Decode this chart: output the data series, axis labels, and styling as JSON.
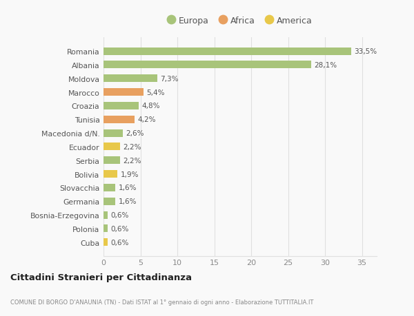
{
  "categories": [
    "Cuba",
    "Polonia",
    "Bosnia-Erzegovina",
    "Germania",
    "Slovacchia",
    "Bolivia",
    "Serbia",
    "Ecuador",
    "Macedonia d/N.",
    "Tunisia",
    "Croazia",
    "Marocco",
    "Moldova",
    "Albania",
    "Romania"
  ],
  "values": [
    0.6,
    0.6,
    0.6,
    1.6,
    1.6,
    1.9,
    2.2,
    2.2,
    2.6,
    4.2,
    4.8,
    5.4,
    7.3,
    28.1,
    33.5
  ],
  "colors": [
    "#e8c84a",
    "#a8c47a",
    "#a8c47a",
    "#a8c47a",
    "#a8c47a",
    "#e8c84a",
    "#a8c47a",
    "#e8c84a",
    "#a8c47a",
    "#e8a060",
    "#a8c47a",
    "#e8a060",
    "#a8c47a",
    "#a8c47a",
    "#a8c47a"
  ],
  "labels": [
    "0,6%",
    "0,6%",
    "0,6%",
    "1,6%",
    "1,6%",
    "1,9%",
    "2,2%",
    "2,2%",
    "2,6%",
    "4,2%",
    "4,8%",
    "5,4%",
    "7,3%",
    "28,1%",
    "33,5%"
  ],
  "legend": [
    {
      "label": "Europa",
      "color": "#a8c47a"
    },
    {
      "label": "Africa",
      "color": "#e8a060"
    },
    {
      "label": "America",
      "color": "#e8c84a"
    }
  ],
  "title": "Cittadini Stranieri per Cittadinanza",
  "subtitle": "COMUNE DI BORGO D'ANAUNIA (TN) - Dati ISTAT al 1° gennaio di ogni anno - Elaborazione TUTTITALIA.IT",
  "xlim": [
    0,
    37
  ],
  "xticks": [
    0,
    5,
    10,
    15,
    20,
    25,
    30,
    35
  ],
  "background_color": "#f9f9f9",
  "grid_color": "#e0e0e0",
  "bar_height": 0.55
}
